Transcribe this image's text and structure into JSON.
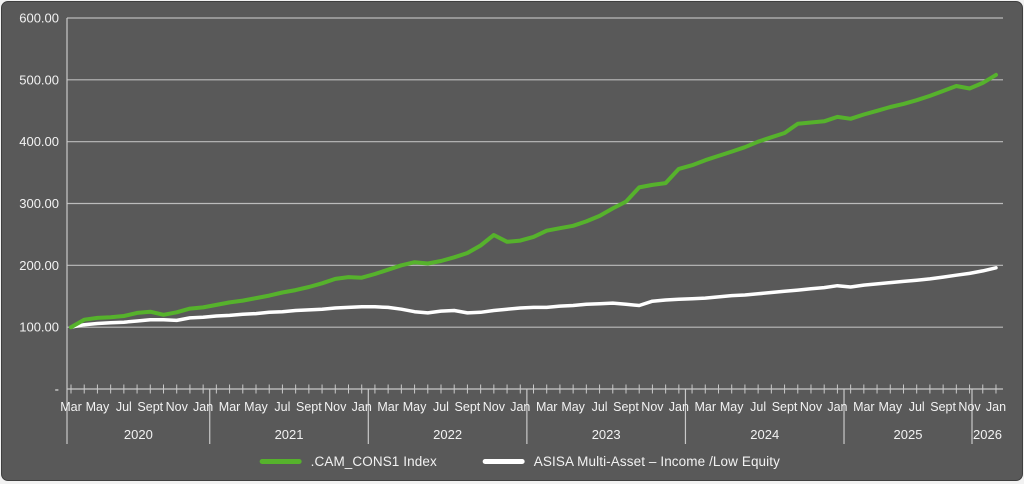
{
  "window": {
    "page_background": "#f2f2f2",
    "panel_background": "#595959",
    "panel_border": "#3f3f3f",
    "text_color": "#f2f2f2",
    "gridline_color": "#bcbcbc",
    "axis_color": "#c9c9c9"
  },
  "chart_data": {
    "type": "line",
    "title": "",
    "xlabel": "",
    "ylabel": "",
    "ylim": [
      0,
      600
    ],
    "grid": "horizontal",
    "legend_position": "bottom-center",
    "y_axis": {
      "ticks": [
        {
          "label": "600.00",
          "value": 600
        },
        {
          "label": "500.00",
          "value": 500
        },
        {
          "label": "400.00",
          "value": 400
        },
        {
          "label": "300.00",
          "value": 300
        },
        {
          "label": "200.00",
          "value": 200
        },
        {
          "label": "100.00",
          "value": 100
        },
        {
          "label": "-",
          "value": 0
        }
      ]
    },
    "x_axis": {
      "month_tick_labels": [
        "Mar",
        "May",
        "Jul",
        "Sept",
        "Nov",
        "Jan"
      ],
      "year_groups": [
        "2020",
        "2021",
        "2022",
        "2023",
        "2024",
        "2025",
        "2026"
      ],
      "start": "Mar 2020",
      "end": "Jan 2026",
      "step": "1 month"
    },
    "x_labels": [
      "Mar 2020",
      "Apr 2020",
      "May 2020",
      "Jun 2020",
      "Jul 2020",
      "Aug 2020",
      "Sep 2020",
      "Oct 2020",
      "Nov 2020",
      "Dec 2020",
      "Jan 2021",
      "Feb 2021",
      "Mar 2021",
      "Apr 2021",
      "May 2021",
      "Jun 2021",
      "Jul 2021",
      "Aug 2021",
      "Sep 2021",
      "Oct 2021",
      "Nov 2021",
      "Dec 2021",
      "Jan 2022",
      "Feb 2022",
      "Mar 2022",
      "Apr 2022",
      "May 2022",
      "Jun 2022",
      "Jul 2022",
      "Aug 2022",
      "Sep 2022",
      "Oct 2022",
      "Nov 2022",
      "Dec 2022",
      "Jan 2023",
      "Feb 2023",
      "Mar 2023",
      "Apr 2023",
      "May 2023",
      "Jun 2023",
      "Jul 2023",
      "Aug 2023",
      "Sep 2023",
      "Oct 2023",
      "Nov 2023",
      "Dec 2023",
      "Jan 2024",
      "Feb 2024",
      "Mar 2024",
      "Apr 2024",
      "May 2024",
      "Jun 2024",
      "Jul 2024",
      "Aug 2024",
      "Sep 2024",
      "Oct 2024",
      "Nov 2024",
      "Dec 2024",
      "Jan 2025",
      "Feb 2025",
      "Mar 2025",
      "Apr 2025",
      "May 2025",
      "Jun 2025",
      "Jul 2025",
      "Aug 2025",
      "Sep 2025",
      "Oct 2025",
      "Nov 2025",
      "Dec 2025",
      "Jan 2026"
    ],
    "series": [
      {
        "name": ".CAM_CONS1 Index",
        "color": "#56b22c",
        "stroke_width": 4,
        "values": [
          100,
          112,
          115,
          116,
          118,
          123,
          125,
          120,
          124,
          130,
          132,
          136,
          140,
          143,
          147,
          151,
          156,
          160,
          165,
          171,
          178,
          181,
          180,
          186,
          193,
          200,
          205,
          203,
          207,
          213,
          220,
          232,
          249,
          238,
          240,
          246,
          256,
          260,
          264,
          271,
          280,
          292,
          303,
          326,
          330,
          333,
          356,
          362,
          370,
          377,
          384,
          391,
          400,
          407,
          414,
          429,
          431,
          433,
          440,
          437,
          444,
          450,
          456,
          461,
          467,
          474,
          482,
          490,
          486,
          495,
          508
        ]
      },
      {
        "name": "ASISA  Multi-Asset – Income /Low Equity",
        "color": "#ffffff",
        "stroke_width": 3.5,
        "values": [
          100,
          104,
          106,
          107,
          108,
          110,
          112,
          112,
          111,
          115,
          116,
          118,
          119,
          121,
          122,
          124,
          125,
          127,
          128,
          129,
          131,
          132,
          133,
          133,
          132,
          129,
          125,
          123,
          126,
          127,
          123,
          124,
          127,
          129,
          131,
          132,
          132,
          134,
          135,
          137,
          138,
          139,
          137,
          135,
          142,
          144,
          145,
          146,
          147,
          149,
          151,
          152,
          154,
          156,
          158,
          160,
          162,
          164,
          167,
          165,
          168,
          170,
          172,
          174,
          176,
          178,
          181,
          184,
          187,
          191,
          196
        ]
      }
    ]
  }
}
